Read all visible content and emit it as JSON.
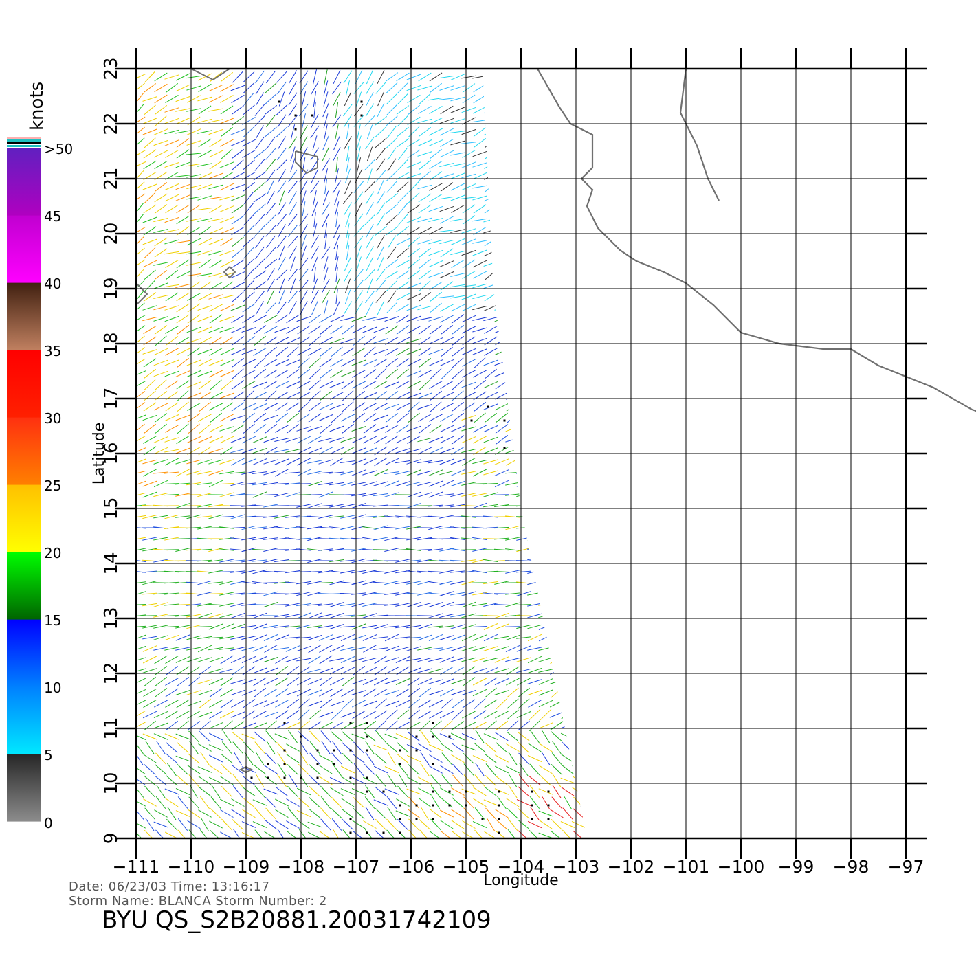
{
  "chart_data": {
    "type": "wind vector map",
    "xlabel": "Longitude",
    "ylabel": "Latitude",
    "xlim": [
      -111,
      -97
    ],
    "ylim": [
      9,
      23
    ],
    "x_ticks": [
      -111,
      -110,
      -109,
      -108,
      -107,
      -106,
      -105,
      -104,
      -103,
      -102,
      -101,
      -100,
      -99,
      -98,
      -97
    ],
    "x_tick_labels": [
      "−111",
      "−110",
      "−109",
      "−108",
      "−107",
      "−106",
      "−105",
      "−104",
      "−103",
      "−102",
      "−101",
      "−100",
      "−99",
      "−98",
      "−97"
    ],
    "y_ticks": [
      9,
      10,
      11,
      12,
      13,
      14,
      15,
      16,
      17,
      18,
      19,
      20,
      21,
      22,
      23
    ],
    "y_tick_labels": [
      "9",
      "10",
      "11",
      "12",
      "13",
      "14",
      "15",
      "16",
      "17",
      "18",
      "19",
      "20",
      "21",
      "22",
      "23"
    ],
    "grid": true,
    "colorbar": {
      "unit_label": "knots",
      "labels": [
        "0",
        "5",
        "10",
        "15",
        "20",
        "25",
        "30",
        "35",
        "40",
        "45",
        ">50"
      ],
      "bands": [
        {
          "from": 0,
          "to": 5,
          "colors": [
            "#8c8c8c",
            "#262626"
          ]
        },
        {
          "from": 5,
          "to": 10,
          "colors": [
            "#00e8ff",
            "#0080ff"
          ]
        },
        {
          "from": 10,
          "to": 15,
          "colors": [
            "#0080ff",
            "#0000ff"
          ]
        },
        {
          "from": 15,
          "to": 20,
          "colors": [
            "#006400",
            "#00ff00"
          ]
        },
        {
          "from": 20,
          "to": 25,
          "colors": [
            "#ffff00",
            "#ffc000"
          ]
        },
        {
          "from": 25,
          "to": 30,
          "colors": [
            "#ff8000",
            "#ff3010"
          ]
        },
        {
          "from": 30,
          "to": 35,
          "colors": [
            "#ff2000",
            "#ff0000"
          ]
        },
        {
          "from": 35,
          "to": 40,
          "colors": [
            "#c08060",
            "#402010"
          ]
        },
        {
          "from": 40,
          "to": 45,
          "colors": [
            "#ff00ff",
            "#c000d0"
          ]
        },
        {
          "from": 45,
          "to": 50,
          "colors": [
            "#b000c0",
            "#6020c0"
          ]
        }
      ],
      "top_stripes": [
        "#ffb0b0",
        "#20c0c0",
        "#000000",
        "#20c0c0"
      ]
    },
    "swath_polygon_lonlat": [
      [
        -111,
        23
      ],
      [
        -104.7,
        23
      ],
      [
        -104.5,
        19
      ],
      [
        -104.0,
        15
      ],
      [
        -103.0,
        10
      ],
      [
        -102.8,
        9
      ],
      [
        -111,
        9
      ]
    ],
    "coastline_lonlat": [
      [
        [
          -103.7,
          23
        ],
        [
          -103.3,
          22.3
        ],
        [
          -103.1,
          22.0
        ],
        [
          -102.7,
          21.8
        ],
        [
          -102.7,
          21.2
        ],
        [
          -102.9,
          21.0
        ],
        [
          -102.7,
          20.8
        ],
        [
          -102.8,
          20.5
        ],
        [
          -102.6,
          20.1
        ],
        [
          -102.2,
          19.7
        ],
        [
          -101.9,
          19.5
        ],
        [
          -101.4,
          19.3
        ],
        [
          -101.0,
          19.1
        ],
        [
          -100.5,
          18.7
        ],
        [
          -100.0,
          18.2
        ],
        [
          -99.3,
          18.0
        ],
        [
          -98.5,
          17.9
        ],
        [
          -98.0,
          17.9
        ],
        [
          -97.5,
          17.6
        ],
        [
          -96.5,
          17.2
        ],
        [
          -95.8,
          16.8
        ],
        [
          -95.2,
          16.6
        ],
        [
          -94.5,
          16.4
        ],
        [
          -94.0,
          16.1
        ],
        [
          -93.6,
          16.0
        ],
        [
          -92.9,
          15.8
        ]
      ],
      [
        [
          -101.0,
          23
        ],
        [
          -101.1,
          22.2
        ],
        [
          -100.8,
          21.6
        ],
        [
          -100.6,
          21.0
        ],
        [
          -100.4,
          20.6
        ]
      ]
    ],
    "islands_lonlat": [
      [
        [
          -108.1,
          21.5
        ],
        [
          -107.7,
          21.4
        ],
        [
          -107.7,
          21.2
        ],
        [
          -107.9,
          21.1
        ],
        [
          -108.1,
          21.3
        ]
      ],
      [
        [
          -109.3,
          19.4
        ],
        [
          -109.2,
          19.3
        ],
        [
          -109.3,
          19.2
        ],
        [
          -109.4,
          19.3
        ]
      ],
      [
        [
          -109.0,
          10.3
        ],
        [
          -108.9,
          10.25
        ],
        [
          -109.0,
          10.2
        ],
        [
          -109.1,
          10.25
        ]
      ],
      [
        [
          -111,
          19.1
        ],
        [
          -110.8,
          18.9
        ],
        [
          -111,
          18.7
        ]
      ],
      [
        [
          -110.0,
          23
        ],
        [
          -109.6,
          22.8
        ],
        [
          -109.3,
          23
        ]
      ]
    ],
    "rain_flag_regions_lonlat": [
      [
        [
          -105.0,
          17.2
        ],
        [
          -104.2,
          17.2
        ],
        [
          -104.2,
          16.0
        ],
        [
          -105.0,
          16.0
        ]
      ],
      [
        [
          -109.0,
          11.3
        ],
        [
          -105.0,
          11.3
        ],
        [
          -105.0,
          10.0
        ],
        [
          -109.0,
          10.0
        ]
      ],
      [
        [
          -107.5,
          10.0
        ],
        [
          -102.9,
          10.0
        ],
        [
          -102.9,
          9.0
        ],
        [
          -107.5,
          9.0
        ]
      ],
      [
        [
          -108.5,
          22.5
        ],
        [
          -106.5,
          22.5
        ],
        [
          -106.5,
          21.8
        ],
        [
          -108.5,
          21.8
        ]
      ]
    ]
  },
  "info": {
    "date_line": "Date: 06/23/03   Time: 13:16:17",
    "storm_line": "Storm  Name: BLANCA    Storm  Number: 2",
    "title": "BYU  QS_S2B20881.20031742109"
  }
}
